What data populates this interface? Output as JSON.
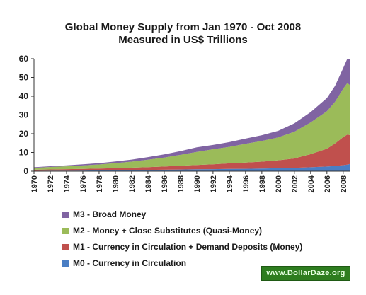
{
  "chart_data": {
    "type": "area",
    "stacked": true,
    "title_line1": "Global Money Supply from Jan 1970 - Oct 2008",
    "title_line2": "Measured in US$ Trillions",
    "ylim": [
      0,
      60
    ],
    "y_ticks": [
      "0",
      "10",
      "20",
      "30",
      "40",
      "50",
      "60"
    ],
    "xlim": [
      1970,
      2008.8
    ],
    "x_ticks": [
      "1970",
      "1972",
      "1974",
      "1976",
      "1978",
      "1980",
      "1982",
      "1984",
      "1986",
      "1988",
      "1990",
      "1992",
      "1994",
      "1996",
      "1998",
      "2000",
      "2002",
      "2004",
      "2006",
      "2008"
    ],
    "x": [
      1970,
      1972,
      1974,
      1976,
      1978,
      1980,
      1982,
      1984,
      1986,
      1988,
      1990,
      1992,
      1994,
      1996,
      1998,
      2000,
      2002,
      2004,
      2006,
      2007,
      2008,
      2008.5,
      2008.8
    ],
    "series": [
      {
        "name": "M0 - Currency in Circulation",
        "color": "#4a7ec4",
        "values": [
          0.2,
          0.25,
          0.3,
          0.35,
          0.4,
          0.5,
          0.6,
          0.7,
          0.8,
          0.9,
          1.0,
          1.1,
          1.2,
          1.3,
          1.4,
          1.6,
          1.8,
          2.1,
          2.5,
          2.8,
          3.2,
          3.5,
          3.8
        ]
      },
      {
        "name": "M1 - Currency in Circulation + Demand Deposits (Money)",
        "color": "#c0504d",
        "values": [
          0.6,
          0.7,
          0.8,
          0.9,
          1.0,
          1.1,
          1.3,
          1.5,
          1.7,
          2.0,
          2.3,
          2.6,
          3.0,
          3.3,
          3.7,
          4.2,
          5.0,
          7.0,
          9.5,
          12.0,
          15.0,
          16.0,
          15.5
        ]
      },
      {
        "name": "M2 - Money + Close Substitutes (Quasi-Money)",
        "color": "#9bbb59",
        "values": [
          1.0,
          1.3,
          1.5,
          1.8,
          2.2,
          2.7,
          3.2,
          3.9,
          4.8,
          5.8,
          7.0,
          8.0,
          8.8,
          10.0,
          11.0,
          12.2,
          14.2,
          16.9,
          20.0,
          22.2,
          25.8,
          27.5,
          26.7
        ]
      },
      {
        "name": "M3 - Broad Money",
        "color": "#8064a2",
        "values": [
          0.3,
          0.4,
          0.5,
          0.6,
          0.7,
          0.9,
          1.1,
          1.4,
          1.7,
          2.0,
          2.4,
          2.3,
          2.5,
          2.8,
          3.1,
          3.5,
          4.5,
          5.5,
          7.0,
          8.5,
          11.0,
          13.0,
          14.0
        ]
      }
    ],
    "legend_order": [
      "M3 - Broad Money",
      "M2 - Money + Close Substitutes (Quasi-Money)",
      "M1 - Currency in Circulation + Demand Deposits (Money)",
      "M0 - Currency in Circulation"
    ],
    "grid": false,
    "legend_placement": "bottom"
  },
  "watermark": "www.DollarDaze.org"
}
